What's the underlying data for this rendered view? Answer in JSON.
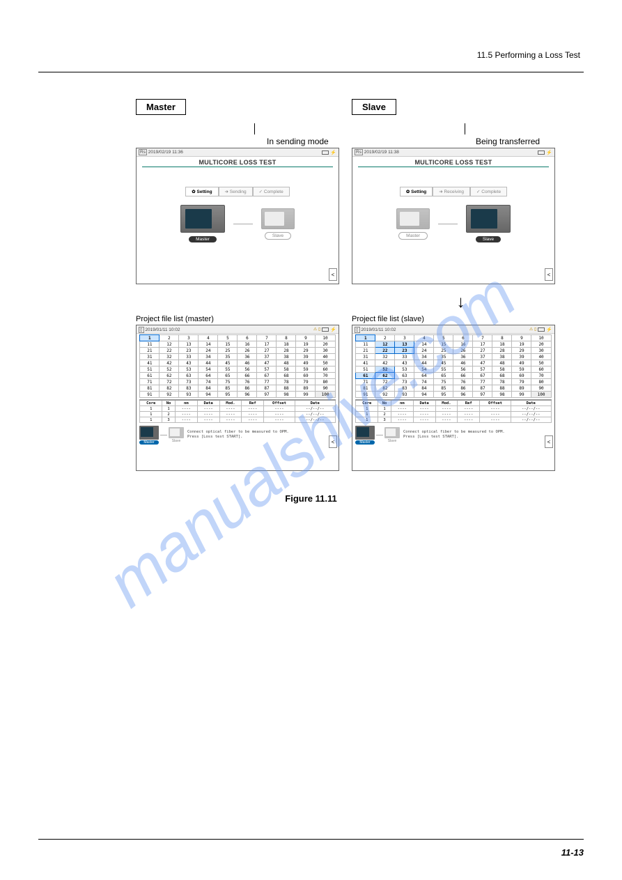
{
  "header_text": "11.5  Performing a Loss Test",
  "labels": {
    "master": "Master",
    "slave": "Slave"
  },
  "captions": {
    "sending": "In sending mode",
    "being_transferred": "Being transferred",
    "upper_master": "Project file list (master)",
    "upper_slave": "Project file list (slave)"
  },
  "screen_master": {
    "timestamp": "2019/02/19 11:36",
    "title": "MULTICORE LOSS TEST",
    "tabs": [
      "✿ Setting",
      "➜ Sending",
      "✓ Complete"
    ],
    "active_tab_index": 0,
    "master_label": "Master",
    "slave_label": "Slave",
    "master_active": true
  },
  "screen_slave": {
    "timestamp": "2019/02/19 11:38",
    "title": "MULTICORE LOSS TEST",
    "tabs": [
      "✿ Setting",
      "➜ Receiving",
      "✓ Complete"
    ],
    "active_tab_index": 0,
    "master_label": "Master",
    "slave_label": "Slave",
    "master_active": false
  },
  "screen_list": {
    "timestamp": "2019/01/11 10:02",
    "headers": [
      "Core",
      "No",
      "nm",
      "Data",
      "Mod.",
      "Ref",
      "Offset",
      "Date"
    ],
    "rows": [
      [
        "1",
        "1",
        "----",
        "----",
        "----",
        "----",
        "----",
        "--/--/--"
      ],
      [
        "1",
        "2",
        "----",
        "----",
        "----",
        "----",
        "----",
        "--/--/--"
      ],
      [
        "1",
        "3",
        "----",
        "----",
        "----",
        "----",
        "----",
        "--/--/--"
      ]
    ],
    "instruction_1": "Connect optical fiber to be measured to OPM.",
    "instruction_2": "Press [Loss test START].",
    "master_label": "Master",
    "slave_label": "Slave"
  },
  "grid": {
    "rows": 10,
    "cols": 10,
    "master_selected": [
      1
    ],
    "slave_selected": [
      1,
      12,
      13,
      22,
      23,
      52,
      61,
      62
    ],
    "last_cell_style": 100
  },
  "figure_label": "Figure 11.11",
  "page_number": "11-13",
  "watermark": "manualshive.com",
  "colors": {
    "accent": "#0a7a6a",
    "selected_bg": "#cce5ff",
    "selected_border": "#0066cc",
    "watermark_color": "rgba(100,150,240,0.4)"
  }
}
